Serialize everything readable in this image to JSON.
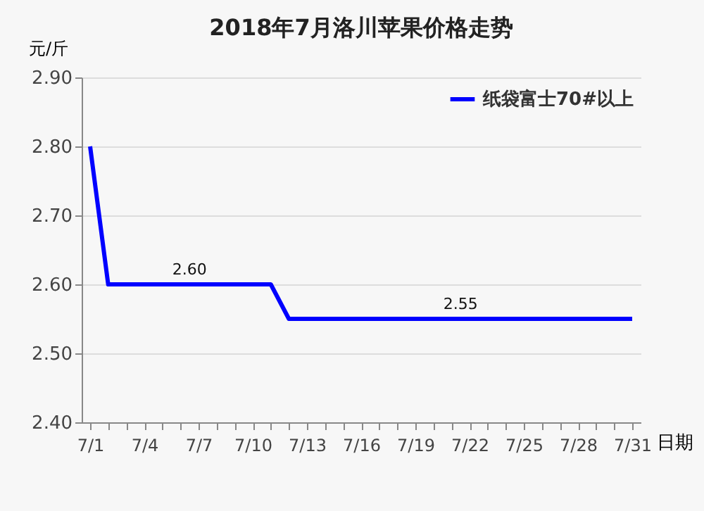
{
  "chart_data": {
    "type": "line",
    "title": "2018年7月洛川苹果价格走势",
    "xlabel": "日期",
    "ylabel": "元/斤",
    "categories": [
      "7/1",
      null,
      null,
      "7/4",
      null,
      null,
      "7/7",
      null,
      null,
      "7/10",
      null,
      null,
      "7/13",
      null,
      null,
      "7/16",
      null,
      null,
      "7/19",
      null,
      null,
      "7/22",
      null,
      null,
      "7/25",
      null,
      null,
      "7/28",
      null,
      null,
      "7/31"
    ],
    "series": [
      {
        "name": "纸袋富士70#以上",
        "color": "#0000ff",
        "values": [
          2.8,
          2.6,
          2.6,
          2.6,
          2.6,
          2.6,
          2.6,
          2.6,
          2.6,
          2.6,
          2.6,
          2.55,
          2.55,
          2.55,
          2.55,
          2.55,
          2.55,
          2.55,
          2.55,
          2.55,
          2.55,
          2.55,
          2.55,
          2.55,
          2.55,
          2.55,
          2.55,
          2.55,
          2.55,
          2.55,
          2.55
        ]
      }
    ],
    "ylim": [
      2.4,
      2.9
    ],
    "yticks": [
      {
        "value": 2.4,
        "label": "2.40"
      },
      {
        "value": 2.5,
        "label": "2.50"
      },
      {
        "value": 2.6,
        "label": "2.60"
      },
      {
        "value": 2.7,
        "label": "2.70"
      },
      {
        "value": 2.8,
        "label": "2.80"
      },
      {
        "value": 2.9,
        "label": "2.90"
      }
    ],
    "annotations": [
      {
        "text": "2.60",
        "y": 2.6
      },
      {
        "text": "2.55",
        "y": 2.55
      }
    ],
    "grid": "y",
    "legend": "top right",
    "marker": "none",
    "line_style": "solid"
  }
}
